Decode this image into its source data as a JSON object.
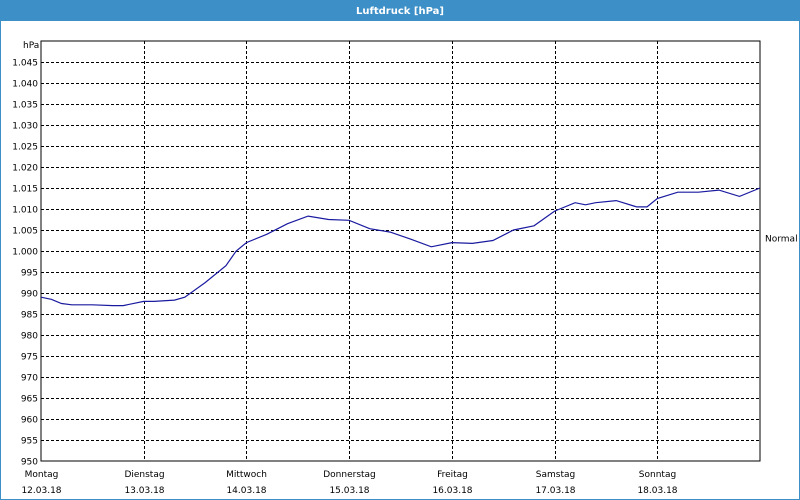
{
  "window": {
    "title": "Luftdruck [hPa]"
  },
  "colors": {
    "titlebar": "#3d8fc7",
    "series": "#1a1aa0",
    "grid": "#000000"
  },
  "chart_data": {
    "type": "line",
    "title": "Luftdruck [hPa]",
    "ylabel": "hPa",
    "ylim": [
      950,
      1050
    ],
    "yticks": [
      950,
      955,
      960,
      965,
      970,
      975,
      980,
      985,
      990,
      995,
      1000,
      1005,
      1010,
      1015,
      1020,
      1025,
      1030,
      1035,
      1040,
      1045
    ],
    "ytick_labels": [
      "950",
      "955",
      "960",
      "965",
      "970",
      "975",
      "980",
      "985",
      "990",
      "995",
      "1.000",
      "1.005",
      "1.010",
      "1.015",
      "1.020",
      "1.025",
      "1.030",
      "1.035",
      "1.040",
      "1.045"
    ],
    "xlim": [
      0,
      7
    ],
    "x_categories": [
      {
        "day": "Montag",
        "date": "12.03.18"
      },
      {
        "day": "Dienstag",
        "date": "13.03.18"
      },
      {
        "day": "Mittwoch",
        "date": "14.03.18"
      },
      {
        "day": "Donnerstag",
        "date": "15.03.18"
      },
      {
        "day": "Freitag",
        "date": "16.03.18"
      },
      {
        "day": "Samstag",
        "date": "17.03.18"
      },
      {
        "day": "Sonntag",
        "date": "18.03.18"
      }
    ],
    "reference_line": {
      "label": "Normal"
    },
    "grid": true,
    "series": [
      {
        "x": [
          0,
          0.1,
          0.2,
          0.3,
          0.5,
          0.7,
          0.8,
          1.0,
          1.1,
          1.3,
          1.4,
          1.6,
          1.8,
          1.9,
          2.0,
          2.2,
          2.4,
          2.6,
          2.8,
          3.0,
          3.2,
          3.4,
          3.6,
          3.8,
          4.0,
          4.2,
          4.4,
          4.6,
          4.8,
          5.0,
          5.2,
          5.3,
          5.4,
          5.6,
          5.8,
          5.9,
          6.0,
          6.2,
          6.4,
          6.6,
          6.8,
          7.0
        ],
        "y": [
          989,
          988.5,
          987.5,
          987.2,
          987.2,
          987.0,
          987.0,
          988.0,
          988.0,
          988.3,
          989.0,
          992.5,
          996.5,
          1000.0,
          1002.0,
          1004.0,
          1006.5,
          1008.3,
          1007.5,
          1007.3,
          1005.3,
          1004.5,
          1002.8,
          1001.0,
          1002.0,
          1001.8,
          1002.5,
          1005.0,
          1006.0,
          1009.5,
          1011.5,
          1011.0,
          1011.5,
          1012.0,
          1010.5,
          1010.5,
          1012.5,
          1014.0,
          1014.0,
          1014.5,
          1013.0,
          1015.0
        ]
      }
    ]
  }
}
